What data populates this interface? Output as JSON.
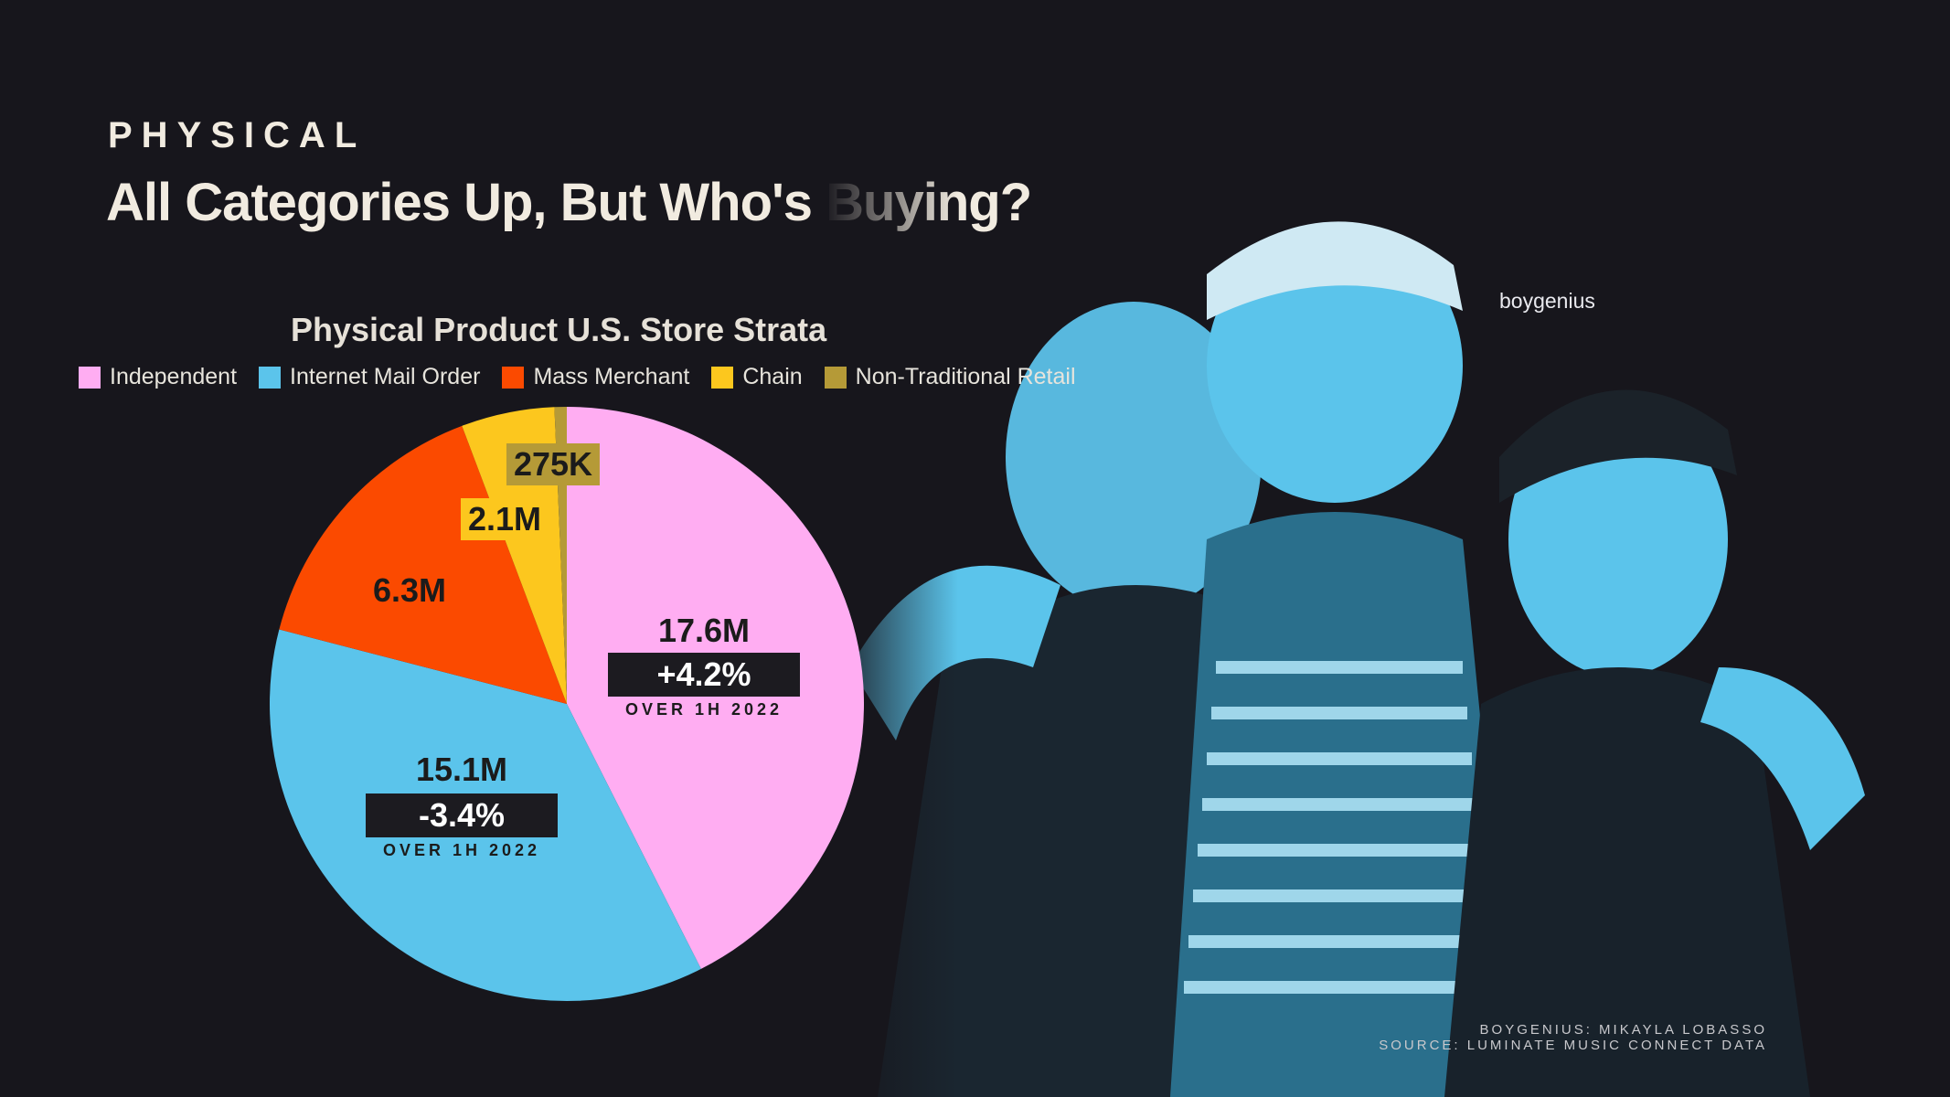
{
  "header": {
    "kicker": "PHYSICAL",
    "title": "All Categories Up, But Who's Buying?"
  },
  "photo": {
    "caption": "boygenius",
    "tint_color": "#5bc4eb"
  },
  "source": {
    "line1": "BOYGENIUS: MIKAYLA LOBASSO",
    "line2": "SOURCE: LUMINATE MUSIC CONNECT  DATA"
  },
  "chart_data": {
    "type": "pie",
    "title": "Physical Product U.S. Store Strata",
    "legend_position": "top",
    "slices": [
      {
        "name": "Independent",
        "value": 17.6,
        "label": "17.6M",
        "color": "#ffadf2",
        "change": "+4.2%",
        "change_period": "OVER 1H 2022"
      },
      {
        "name": "Internet Mail Order",
        "value": 15.1,
        "label": "15.1M",
        "color": "#5bc4eb",
        "change": "-3.4%",
        "change_period": "OVER 1H 2022"
      },
      {
        "name": "Mass Merchant",
        "value": 6.3,
        "label": "6.3M",
        "color": "#fb4a00"
      },
      {
        "name": "Chain",
        "value": 2.1,
        "label": "2.1M",
        "color": "#fcc71e"
      },
      {
        "name": "Non-Traditional Retail",
        "value": 0.275,
        "label": "275K",
        "color": "#b59a37"
      }
    ]
  }
}
